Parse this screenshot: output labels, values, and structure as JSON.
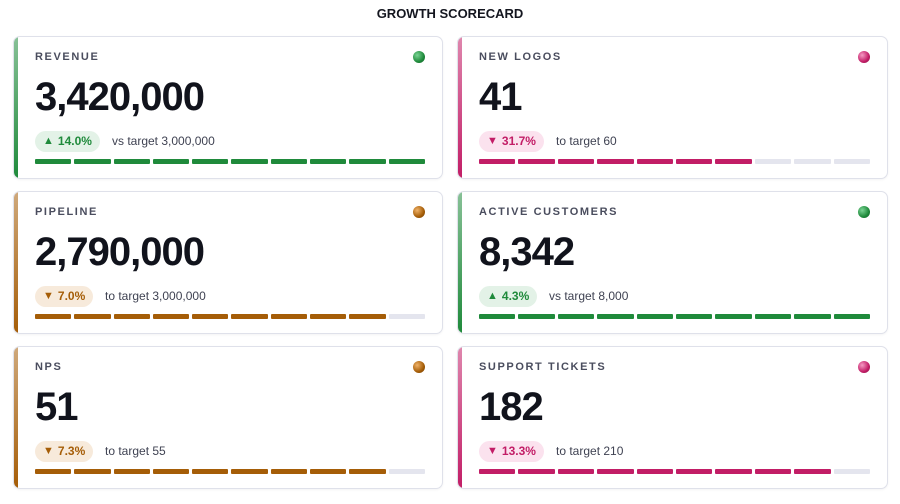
{
  "title": "GROWTH SCORECARD",
  "colors": {
    "green": "#1f8a3b",
    "amber": "#a55d07",
    "magenta": "#c21d66",
    "empty_segment": "#e4e5ee"
  },
  "cards": [
    {
      "label": "REVENUE",
      "value": "3,420,000",
      "status": "green",
      "direction": "up",
      "change": "14.0%",
      "target_text": "vs target 3,000,000",
      "progress_segments_filled": 10,
      "progress_segments_total": 10
    },
    {
      "label": "NEW LOGOS",
      "value": "41",
      "status": "magenta",
      "direction": "down",
      "change": "31.7%",
      "target_text": "to target 60",
      "progress_segments_filled": 7,
      "progress_segments_total": 10
    },
    {
      "label": "PIPELINE",
      "value": "2,790,000",
      "status": "amber",
      "direction": "down",
      "change": "7.0%",
      "target_text": "to target 3,000,000",
      "progress_segments_filled": 9,
      "progress_segments_total": 10
    },
    {
      "label": "ACTIVE CUSTOMERS",
      "value": "8,342",
      "status": "green",
      "direction": "up",
      "change": "4.3%",
      "target_text": "vs target 8,000",
      "progress_segments_filled": 10,
      "progress_segments_total": 10
    },
    {
      "label": "NPS",
      "value": "51",
      "status": "amber",
      "direction": "down",
      "change": "7.3%",
      "target_text": "to target 55",
      "progress_segments_filled": 9,
      "progress_segments_total": 10
    },
    {
      "label": "SUPPORT TICKETS",
      "value": "182",
      "status": "magenta",
      "direction": "down",
      "change": "13.3%",
      "target_text": "to target 210",
      "progress_segments_filled": 9,
      "progress_segments_total": 10
    }
  ]
}
